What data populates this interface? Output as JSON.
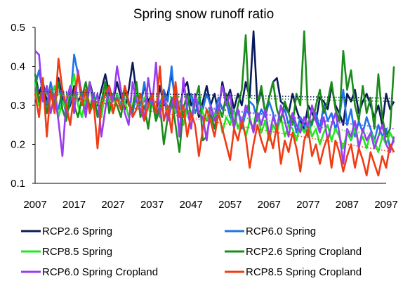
{
  "chart_data": {
    "type": "line",
    "title": "Spring snow runoff ratio",
    "xlabel": "",
    "ylabel": "",
    "xlim": [
      2007,
      2100
    ],
    "ylim": [
      0.1,
      0.5
    ],
    "x_ticks": [
      "2007",
      "2017",
      "2027",
      "2037",
      "2047",
      "2057",
      "2067",
      "2077",
      "2087",
      "2097"
    ],
    "y_ticks": [
      "0.1",
      "0.2",
      "0.3",
      "0.4",
      "0.5"
    ],
    "grid": false,
    "legend_position": "bottom",
    "trendlines": "dotted linear trend per series",
    "series": [
      {
        "name": "RCP2.6 Spring",
        "color": "#0b1a5c",
        "trend": [
          0.335,
          0.318
        ],
        "values": [
          0.38,
          0.33,
          0.36,
          0.31,
          0.34,
          0.29,
          0.37,
          0.32,
          0.28,
          0.3,
          0.35,
          0.31,
          0.33,
          0.29,
          0.36,
          0.32,
          0.3,
          0.34,
          0.38,
          0.33,
          0.31,
          0.36,
          0.32,
          0.29,
          0.34,
          0.41,
          0.33,
          0.3,
          0.35,
          0.31,
          0.33,
          0.28,
          0.35,
          0.3,
          0.33,
          0.38,
          0.31,
          0.29,
          0.34,
          0.36,
          0.3,
          0.32,
          0.27,
          0.31,
          0.35,
          0.3,
          0.33,
          0.28,
          0.36,
          0.31,
          0.34,
          0.29,
          0.33,
          0.3,
          0.36,
          0.32,
          0.49,
          0.3,
          0.34,
          0.28,
          0.32,
          0.36,
          0.37,
          0.31,
          0.3,
          0.28,
          0.33,
          0.29,
          0.26,
          0.24,
          0.3,
          0.28,
          0.26,
          0.32,
          0.31,
          0.29,
          0.35,
          0.3,
          0.28,
          0.25,
          0.33,
          0.31,
          0.34,
          0.28,
          0.31,
          0.33,
          0.3,
          0.27,
          0.3,
          0.25,
          0.33,
          0.29,
          0.31
        ]
      },
      {
        "name": "RCP6.0 Spring",
        "color": "#1e73e8",
        "trend": [
          0.34,
          0.24
        ],
        "values": [
          0.35,
          0.39,
          0.33,
          0.3,
          0.36,
          0.31,
          0.29,
          0.34,
          0.27,
          0.31,
          0.43,
          0.38,
          0.33,
          0.29,
          0.35,
          0.32,
          0.28,
          0.3,
          0.36,
          0.31,
          0.28,
          0.33,
          0.3,
          0.35,
          0.31,
          0.28,
          0.33,
          0.3,
          0.36,
          0.29,
          0.32,
          0.27,
          0.3,
          0.34,
          0.31,
          0.4,
          0.29,
          0.31,
          0.27,
          0.3,
          0.33,
          0.28,
          0.31,
          0.29,
          0.33,
          0.3,
          0.27,
          0.32,
          0.29,
          0.31,
          0.27,
          0.25,
          0.29,
          0.24,
          0.28,
          0.31,
          0.3,
          0.26,
          0.29,
          0.27,
          0.31,
          0.28,
          0.24,
          0.27,
          0.29,
          0.25,
          0.28,
          0.23,
          0.27,
          0.25,
          0.22,
          0.26,
          0.28,
          0.24,
          0.3,
          0.26,
          0.28,
          0.24,
          0.27,
          0.34,
          0.25,
          0.29,
          0.22,
          0.26,
          0.23,
          0.27,
          0.24,
          0.21,
          0.25,
          0.22,
          0.24,
          0.19,
          0.21
        ]
      },
      {
        "name": "RCP8.5 Spring",
        "color": "#22e822",
        "trend": [
          0.335,
          0.22
        ],
        "values": [
          0.36,
          0.3,
          0.34,
          0.28,
          0.32,
          0.35,
          0.27,
          0.31,
          0.29,
          0.33,
          0.38,
          0.3,
          0.27,
          0.32,
          0.36,
          0.29,
          0.31,
          0.27,
          0.34,
          0.3,
          0.28,
          0.33,
          0.29,
          0.31,
          0.27,
          0.3,
          0.34,
          0.28,
          0.32,
          0.29,
          0.31,
          0.26,
          0.29,
          0.33,
          0.27,
          0.3,
          0.28,
          0.31,
          0.25,
          0.29,
          0.27,
          0.3,
          0.32,
          0.28,
          0.26,
          0.3,
          0.27,
          0.29,
          0.23,
          0.27,
          0.25,
          0.29,
          0.24,
          0.27,
          0.22,
          0.26,
          0.24,
          0.28,
          0.23,
          0.26,
          0.21,
          0.25,
          0.23,
          0.27,
          0.22,
          0.25,
          0.24,
          0.21,
          0.25,
          0.23,
          0.26,
          0.22,
          0.24,
          0.2,
          0.23,
          0.25,
          0.21,
          0.24,
          0.22,
          0.19,
          0.23,
          0.21,
          0.24,
          0.2,
          0.22,
          0.19,
          0.23,
          0.21,
          0.18,
          0.22,
          0.2,
          0.23,
          0.21
        ]
      },
      {
        "name": "RCP2.6 Spring Cropland",
        "color": "#1a8c1a",
        "trend": [
          0.33,
          0.31
        ],
        "values": [
          0.38,
          0.31,
          0.35,
          0.28,
          0.33,
          0.3,
          0.36,
          0.29,
          0.26,
          0.33,
          0.3,
          0.27,
          0.32,
          0.36,
          0.29,
          0.33,
          0.27,
          0.31,
          0.36,
          0.28,
          0.33,
          0.3,
          0.27,
          0.34,
          0.3,
          0.29,
          0.36,
          0.27,
          0.3,
          0.24,
          0.32,
          0.26,
          0.3,
          0.2,
          0.27,
          0.32,
          0.25,
          0.18,
          0.29,
          0.33,
          0.27,
          0.31,
          0.35,
          0.21,
          0.22,
          0.28,
          0.24,
          0.3,
          0.27,
          0.33,
          0.29,
          0.25,
          0.3,
          0.34,
          0.48,
          0.26,
          0.24,
          0.3,
          0.35,
          0.28,
          0.32,
          0.36,
          0.29,
          0.26,
          0.31,
          0.28,
          0.25,
          0.33,
          0.3,
          0.49,
          0.27,
          0.25,
          0.3,
          0.34,
          0.28,
          0.31,
          0.36,
          0.29,
          0.26,
          0.44,
          0.34,
          0.39,
          0.3,
          0.26,
          0.35,
          0.28,
          0.32,
          0.24,
          0.38,
          0.27,
          0.22,
          0.24,
          0.4
        ]
      },
      {
        "name": "RCP6.0 Spring Cropland",
        "color": "#9a3cf0",
        "trend": [
          0.345,
          0.24
        ],
        "values": [
          0.44,
          0.43,
          0.31,
          0.35,
          0.28,
          0.33,
          0.26,
          0.17,
          0.31,
          0.35,
          0.28,
          0.39,
          0.32,
          0.27,
          0.36,
          0.3,
          0.33,
          0.22,
          0.29,
          0.35,
          0.31,
          0.4,
          0.34,
          0.28,
          0.25,
          0.36,
          0.31,
          0.29,
          0.26,
          0.37,
          0.3,
          0.41,
          0.27,
          0.33,
          0.26,
          0.3,
          0.34,
          0.22,
          0.37,
          0.29,
          0.24,
          0.33,
          0.28,
          0.27,
          0.21,
          0.3,
          0.26,
          0.29,
          0.35,
          0.3,
          0.33,
          0.24,
          0.29,
          0.25,
          0.3,
          0.27,
          0.23,
          0.28,
          0.25,
          0.29,
          0.22,
          0.27,
          0.24,
          0.3,
          0.26,
          0.22,
          0.28,
          0.25,
          0.23,
          0.27,
          0.24,
          0.3,
          0.26,
          0.23,
          0.27,
          0.21,
          0.25,
          0.28,
          0.23,
          0.15,
          0.24,
          0.22,
          0.26,
          0.19,
          0.24,
          0.21,
          0.23,
          0.19,
          0.22,
          0.25,
          0.2,
          0.18,
          0.22
        ]
      },
      {
        "name": "RCP8.5 Spring Cropland",
        "color": "#f03c14",
        "trend": [
          0.335,
          0.18
        ],
        "values": [
          0.33,
          0.27,
          0.37,
          0.22,
          0.34,
          0.28,
          0.42,
          0.34,
          0.3,
          0.25,
          0.33,
          0.38,
          0.3,
          0.34,
          0.28,
          0.31,
          0.19,
          0.3,
          0.33,
          0.35,
          0.28,
          0.32,
          0.29,
          0.35,
          0.31,
          0.27,
          0.29,
          0.33,
          0.26,
          0.3,
          0.33,
          0.28,
          0.4,
          0.26,
          0.3,
          0.23,
          0.36,
          0.27,
          0.3,
          0.22,
          0.28,
          0.25,
          0.17,
          0.24,
          0.29,
          0.26,
          0.22,
          0.28,
          0.24,
          0.2,
          0.16,
          0.24,
          0.21,
          0.26,
          0.22,
          0.14,
          0.2,
          0.25,
          0.21,
          0.18,
          0.23,
          0.19,
          0.25,
          0.15,
          0.21,
          0.18,
          0.23,
          0.19,
          0.13,
          0.21,
          0.24,
          0.17,
          0.2,
          0.15,
          0.19,
          0.22,
          0.14,
          0.21,
          0.18,
          0.13,
          0.17,
          0.2,
          0.14,
          0.19,
          0.16,
          0.12,
          0.18,
          0.15,
          0.12,
          0.17,
          0.14,
          0.2,
          0.18
        ]
      }
    ]
  }
}
